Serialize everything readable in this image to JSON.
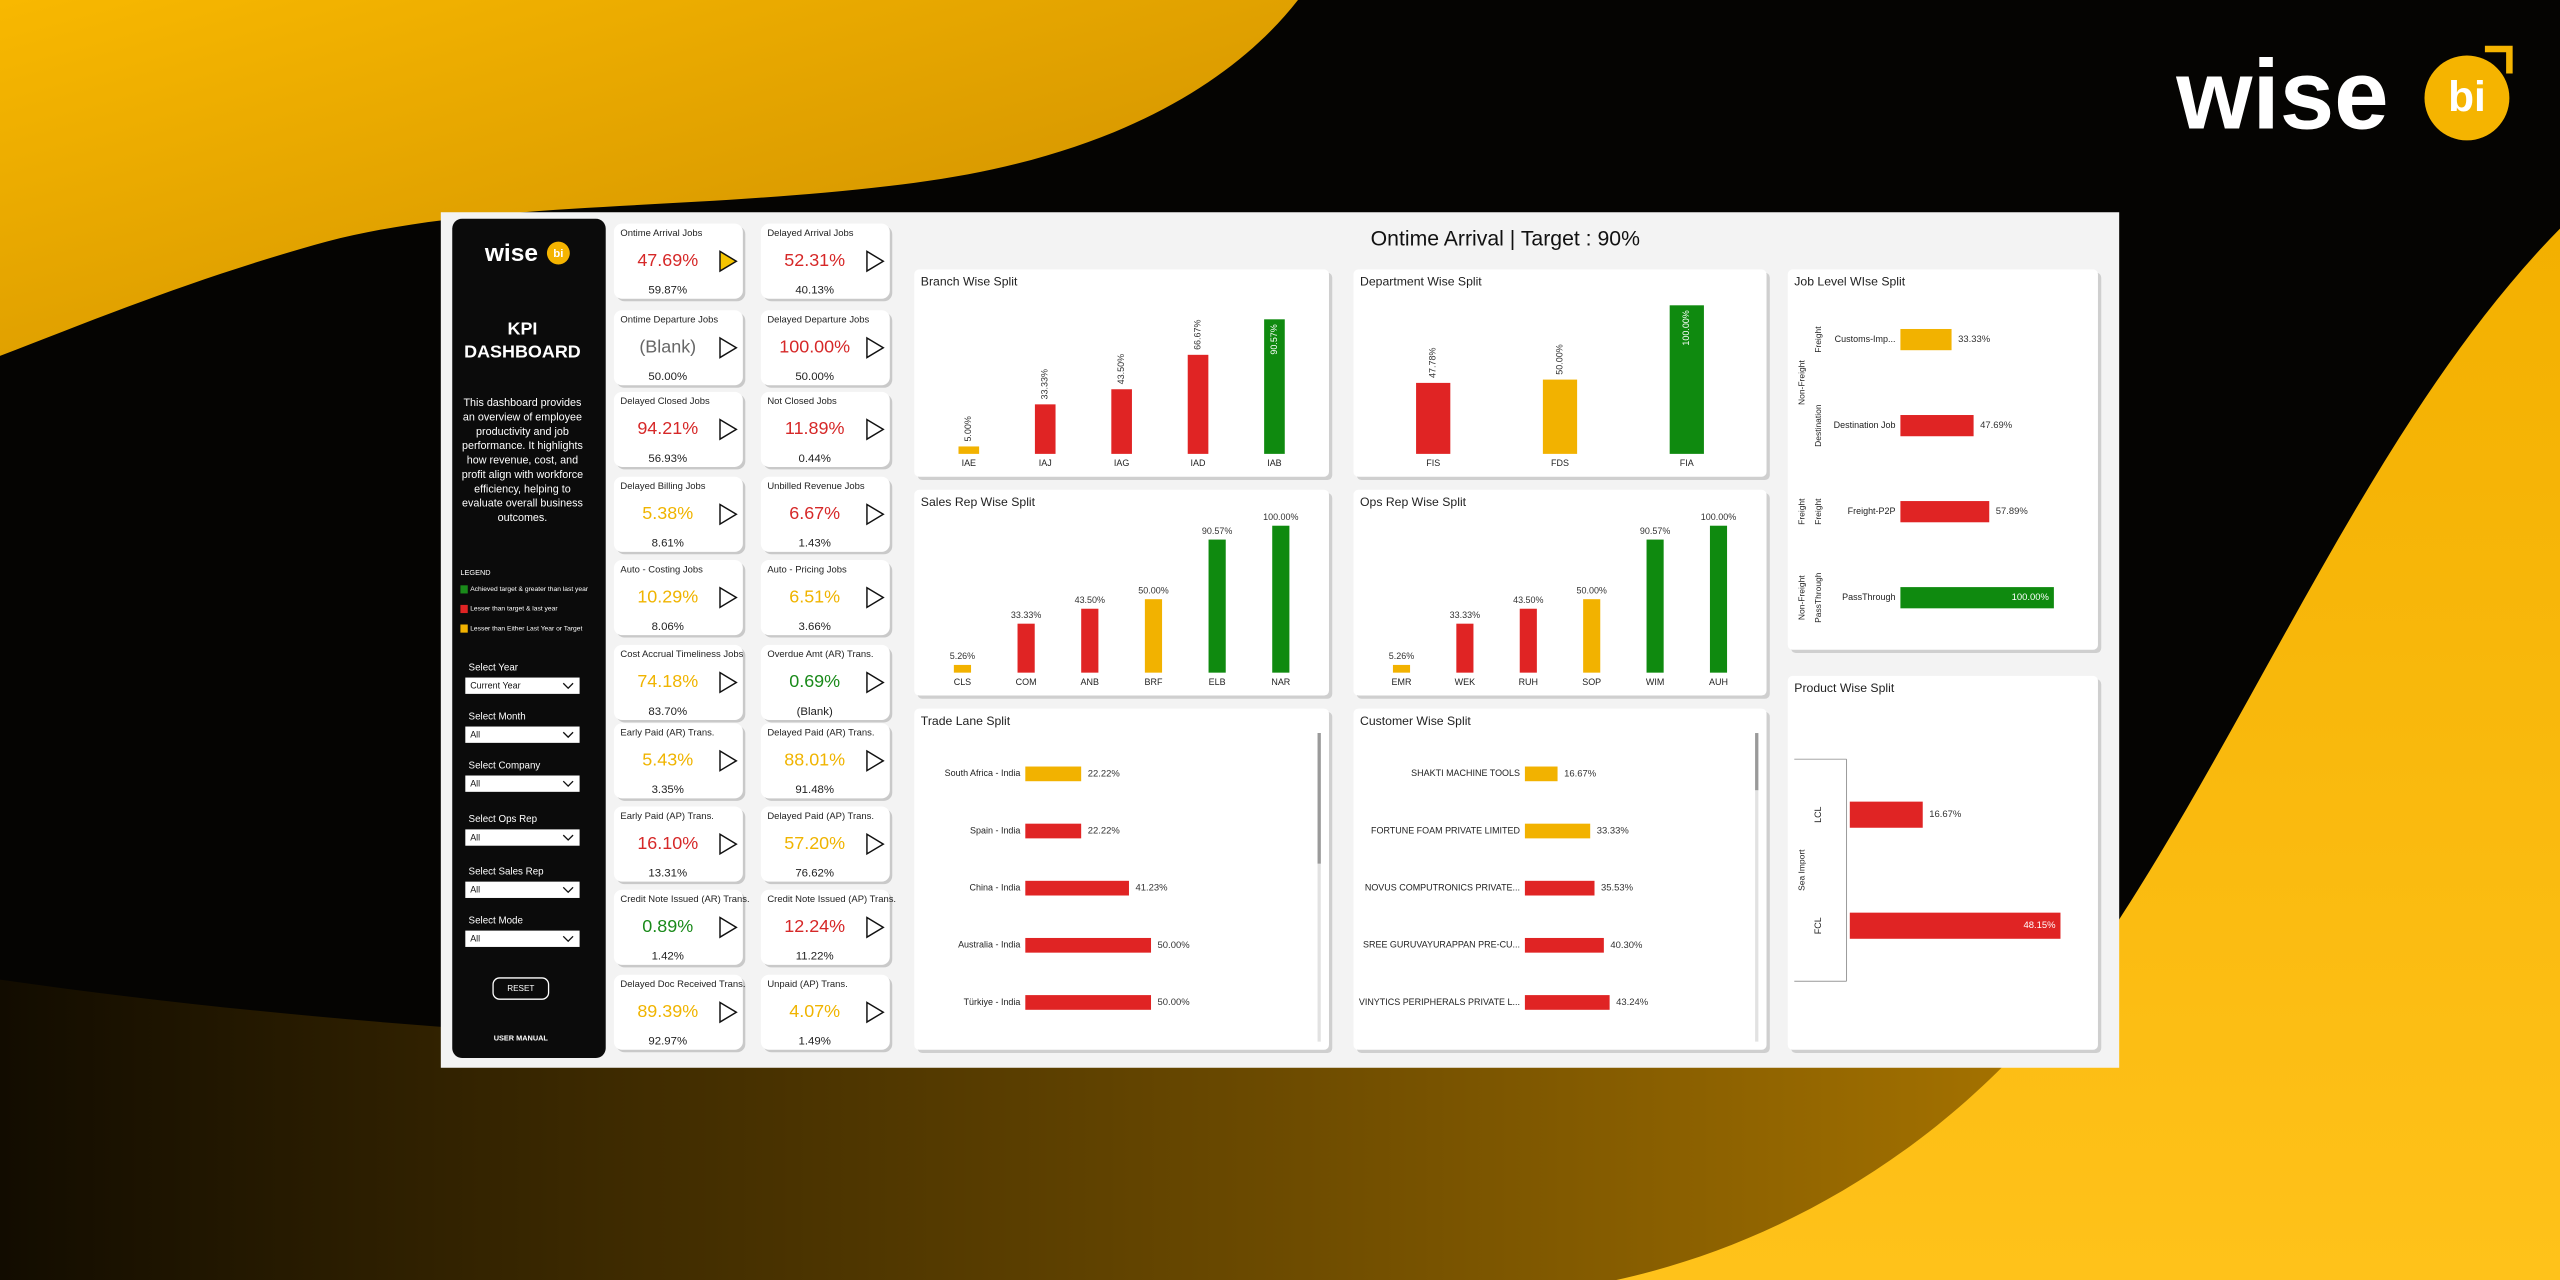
{
  "logo": {
    "word": "wise",
    "badge": "bi"
  },
  "title": "Ontime Arrival | Target : 90%",
  "sidebar": {
    "logo": {
      "word": "wise",
      "badge": "bi"
    },
    "heading": [
      "KPI",
      "DASHBOARD"
    ],
    "description": [
      "This dashboard provides",
      "an overview of employee",
      "productivity and job",
      "performance. It highlights",
      "how revenue, cost, and",
      "profit align with workforce",
      "efficiency, helping to",
      "evaluate overall business",
      "outcomes."
    ],
    "legend_title": "LEGEND",
    "legend": [
      {
        "label": "Achieved target & greater than last year",
        "color": "#1a8a1a"
      },
      {
        "label": "Lesser than target & last year",
        "color": "#e02424"
      },
      {
        "label": "Lesser than Either Last Year or Target",
        "color": "#f2b200"
      }
    ],
    "filters": [
      {
        "label": "Select Year",
        "value": "Current Year"
      },
      {
        "label": "Select Month",
        "value": "All"
      },
      {
        "label": "Select Company",
        "value": "All"
      },
      {
        "label": "Select Ops Rep",
        "value": "All"
      },
      {
        "label": "Select Sales Rep",
        "value": "All"
      },
      {
        "label": "Select Mode",
        "value": "All"
      }
    ],
    "reset": "RESET",
    "manual": "USER MANUAL"
  },
  "kpi_cards": [
    [
      {
        "title": "Ontime Arrival Jobs",
        "value": "47.69%",
        "sub": "59.87%",
        "color": "#d62828",
        "selected": true
      },
      {
        "title": "Ontime Departure Jobs",
        "value": "(Blank)",
        "sub": "50.00%",
        "color": "#666666"
      },
      {
        "title": "Delayed Closed Jobs",
        "value": "94.21%",
        "sub": "56.93%",
        "color": "#d62828"
      },
      {
        "title": "Delayed Billing Jobs",
        "value": "5.38%",
        "sub": "8.61%",
        "color": "#f0b400"
      },
      {
        "title": "Auto - Costing Jobs",
        "value": "10.29%",
        "sub": "8.06%",
        "color": "#f0b400"
      },
      {
        "title": "Cost Accrual Timeliness Jobs",
        "value": "74.18%",
        "sub": "83.70%",
        "color": "#f0b400"
      },
      {
        "title": "Early Paid (AR) Trans.",
        "value": "5.43%",
        "sub": "3.35%",
        "color": "#f0b400"
      },
      {
        "title": "Early Paid (AP) Trans.",
        "value": "16.10%",
        "sub": "13.31%",
        "color": "#d62828"
      },
      {
        "title": "Credit Note Issued (AR) Trans.",
        "value": "0.89%",
        "sub": "1.42%",
        "color": "#1a8a1a"
      },
      {
        "title": "Delayed Doc Received Trans.",
        "value": "89.39%",
        "sub": "92.97%",
        "color": "#f0b400"
      }
    ],
    [
      {
        "title": "Delayed Arrival Jobs",
        "value": "52.31%",
        "sub": "40.13%",
        "color": "#d62828"
      },
      {
        "title": "Delayed Departure Jobs",
        "value": "100.00%",
        "sub": "50.00%",
        "color": "#d62828"
      },
      {
        "title": "Not Closed Jobs",
        "value": "11.89%",
        "sub": "0.44%",
        "color": "#d62828"
      },
      {
        "title": "Unbilled Revenue Jobs",
        "value": "6.67%",
        "sub": "1.43%",
        "color": "#d62828"
      },
      {
        "title": "Auto - Pricing Jobs",
        "value": "6.51%",
        "sub": "3.66%",
        "color": "#f0b400"
      },
      {
        "title": "Overdue Amt (AR) Trans.",
        "value": "0.69%",
        "sub": "(Blank)",
        "color": "#1a8a1a"
      },
      {
        "title": "Delayed Paid (AR) Trans.",
        "value": "88.01%",
        "sub": "91.48%",
        "color": "#f0b400"
      },
      {
        "title": "Delayed Paid (AP) Trans.",
        "value": "57.20%",
        "sub": "76.62%",
        "color": "#f0b400"
      },
      {
        "title": "Credit Note Issued (AP) Trans.",
        "value": "12.24%",
        "sub": "11.22%",
        "color": "#d62828"
      },
      {
        "title": "Unpaid (AP) Trans.",
        "value": "4.07%",
        "sub": "1.49%",
        "color": "#f0b400"
      }
    ]
  ],
  "charts": [
    {
      "type": "bar",
      "title": "Branch Wise Split",
      "categories": [
        "IAE",
        "IAJ",
        "IAG",
        "IAD",
        "IAB"
      ],
      "values": [
        5.0,
        33.33,
        43.5,
        66.67,
        90.57
      ],
      "value_labels": [
        "5.00%",
        "33.33%",
        "43.50%",
        "66.67%",
        "90.57%"
      ],
      "colors": [
        "#f2b200",
        "#e02424",
        "#e02424",
        "#e02424",
        "#0f8a0f"
      ],
      "ylim": [
        0,
        100
      ],
      "rotated_labels": true
    },
    {
      "type": "bar",
      "title": "Department Wise Split",
      "categories": [
        "FIS",
        "FDS",
        "FIA"
      ],
      "values": [
        47.78,
        50.0,
        100.0
      ],
      "value_labels": [
        "47.78%",
        "50.00%",
        "100.00%"
      ],
      "colors": [
        "#e02424",
        "#f2b200",
        "#0f8a0f"
      ],
      "ylim": [
        0,
        100
      ],
      "rotated_labels": true
    },
    {
      "type": "bar",
      "title": "Sales Rep Wise Split",
      "categories": [
        "CLS",
        "COM",
        "ANB",
        "BRF",
        "ELB",
        "NAR"
      ],
      "values": [
        5.26,
        33.33,
        43.5,
        50.0,
        90.57,
        100.0
      ],
      "value_labels": [
        "5.26%",
        "33.33%",
        "43.50%",
        "50.00%",
        "90.57%",
        "100.00%"
      ],
      "colors": [
        "#f2b200",
        "#e02424",
        "#e02424",
        "#f2b200",
        "#0f8a0f",
        "#0f8a0f"
      ],
      "ylim": [
        0,
        100
      ]
    },
    {
      "type": "bar",
      "title": "Ops Rep Wise Split",
      "categories": [
        "EMR",
        "WEK",
        "RUH",
        "SOP",
        "WIM",
        "AUH"
      ],
      "values": [
        5.26,
        33.33,
        43.5,
        50.0,
        90.57,
        100.0
      ],
      "value_labels": [
        "5.26%",
        "33.33%",
        "43.50%",
        "50.00%",
        "90.57%",
        "100.00%"
      ],
      "colors": [
        "#f2b200",
        "#e02424",
        "#e02424",
        "#f2b200",
        "#0f8a0f",
        "#0f8a0f"
      ],
      "ylim": [
        0,
        100
      ]
    },
    {
      "type": "barh",
      "title": "Trade Lane Split",
      "categories": [
        "South Africa - India",
        "Spain - India",
        "China - India",
        "Australia - India",
        "Türkiye - India"
      ],
      "values": [
        22.22,
        22.22,
        41.23,
        50.0,
        50.0
      ],
      "value_labels": [
        "22.22%",
        "22.22%",
        "41.23%",
        "50.00%",
        "50.00%"
      ],
      "colors": [
        "#f2b200",
        "#e02424",
        "#e02424",
        "#e02424",
        "#e02424"
      ],
      "xlim": [
        0,
        100
      ],
      "scrollbar": true
    },
    {
      "type": "barh",
      "title": "Customer Wise Split",
      "categories": [
        "SHAKTI MACHINE TOOLS",
        "FORTUNE FOAM PRIVATE LIMITED",
        "NOVUS COMPUTRONICS PRIVATE...",
        "SREE GURUVAYURAPPAN PRE-CU...",
        "VINYTICS PERIPHERALS PRIVATE L..."
      ],
      "values": [
        16.67,
        33.33,
        35.53,
        40.3,
        43.24
      ],
      "value_labels": [
        "16.67%",
        "33.33%",
        "35.53%",
        "40.30%",
        "43.24%"
      ],
      "colors": [
        "#f2b200",
        "#f2b200",
        "#e02424",
        "#e02424",
        "#e02424"
      ],
      "xlim": [
        0,
        100
      ],
      "scrollbar": true
    },
    {
      "type": "barh",
      "title": "Job Level WIse Split",
      "categories": [
        "Customs-Imp...",
        "Destination Job",
        "Freight-P2P",
        "PassThrough"
      ],
      "groups": [
        "Non-Freight",
        null,
        "Freight",
        "Non-Freight"
      ],
      "subgroups": [
        "Freight",
        "Destination",
        "Freight",
        "PassThrough"
      ],
      "values": [
        33.33,
        47.69,
        57.89,
        100.0
      ],
      "value_labels": [
        "33.33%",
        "47.69%",
        "57.89%",
        "100.00%"
      ],
      "colors": [
        "#f2b200",
        "#e02424",
        "#e02424",
        "#0f8a0f"
      ],
      "xlim": [
        0,
        100
      ]
    },
    {
      "type": "barh",
      "title": "Product Wise Split",
      "categories": [
        "LCL",
        "FCL"
      ],
      "groups": [
        "Sea Import",
        null
      ],
      "values": [
        16.67,
        48.15
      ],
      "value_labels": [
        "16.67%",
        "48.15%"
      ],
      "colors": [
        "#e02424",
        "#e02424"
      ],
      "xlim": [
        0,
        50
      ]
    }
  ]
}
